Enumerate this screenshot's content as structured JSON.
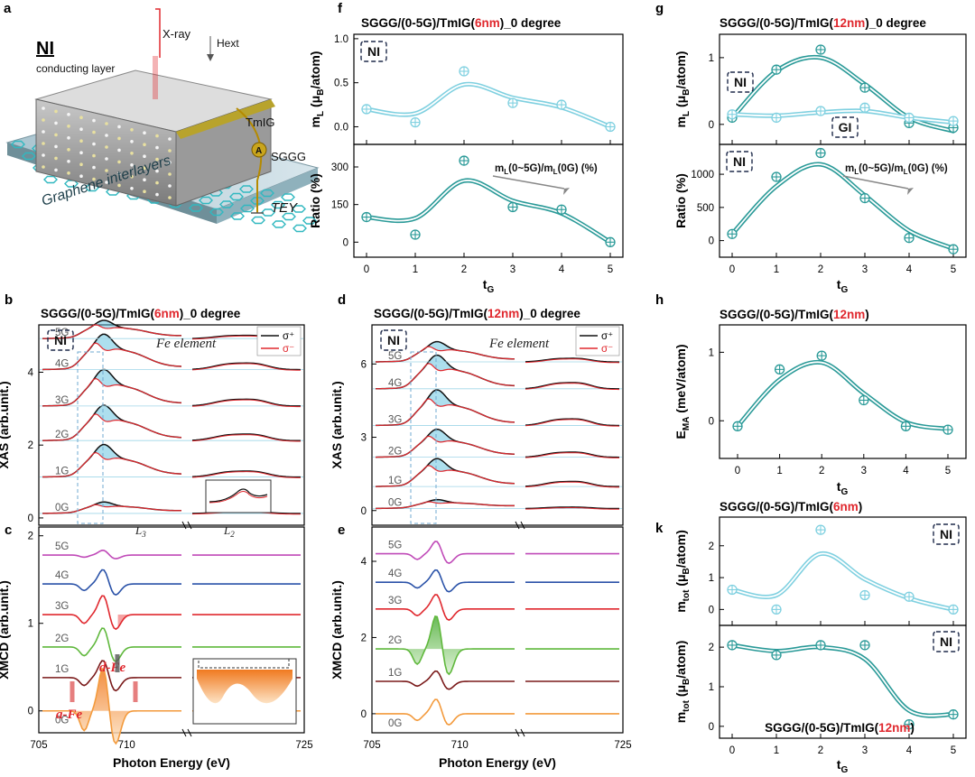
{
  "panel_letters": {
    "a": "a",
    "b": "b",
    "c": "c",
    "d": "d",
    "e": "e",
    "f": "f",
    "g": "g",
    "h": "h",
    "k": "k"
  },
  "schematic": {
    "title": "NI",
    "labels": {
      "conducting": "conducting layer",
      "xray": "X-ray",
      "hext": "Hext",
      "tmig": "TmIG",
      "sggg": "SGGG",
      "graphene": "Graphene interlayers",
      "tey": "TEY",
      "ammeter": "A"
    }
  },
  "colors": {
    "light": "#7fd0e0",
    "dark": "#2a9a98",
    "red": "#e0282e",
    "black": "#111111"
  },
  "chart_data": [
    {
      "id": "f",
      "type": "line",
      "title_parts": [
        "SGGG/(0-5G)/TmIG(",
        "6nm",
        ")_0 degree"
      ],
      "xlabel_main": "t",
      "xlabel_sub": "G",
      "x": [
        0,
        1,
        2,
        3,
        4,
        5
      ],
      "xticks": [
        "0",
        "1",
        "2",
        "3",
        "4",
        "5"
      ],
      "subplots": [
        {
          "ylabel_main": "m",
          "ylabel_sub": "L",
          "ylabel_rest": " (μ",
          "ylabel_sub2": "B",
          "ylabel_end": "/atom)",
          "ylim": [
            -0.2,
            1.05
          ],
          "yticks": [
            "0.0",
            "0.5",
            "1.0"
          ],
          "ytick_values": [
            0,
            0.5,
            1.0
          ],
          "badge": "NI",
          "series": [
            {
              "values": [
                0.2,
                0.05,
                0.63,
                0.27,
                0.25,
                0.0
              ],
              "fit": [
                0.2,
                0.15,
                0.48,
                0.33,
                0.22,
                0.0
              ],
              "color": "light"
            }
          ]
        },
        {
          "ylabel_main": "Ratio (%)",
          "ylim": [
            -60,
            390
          ],
          "yticks": [
            "0",
            "150",
            "300"
          ],
          "ytick_values": [
            0,
            150,
            300
          ],
          "annotation_parts": [
            "m",
            "L",
            "(0~5G)/m",
            "L",
            "(0G) (%)"
          ],
          "series": [
            {
              "values": [
                100,
                30,
                325,
                140,
                130,
                0
              ],
              "fit": [
                100,
                95,
                245,
                165,
                115,
                0
              ],
              "color": "dark"
            }
          ]
        }
      ]
    },
    {
      "id": "g",
      "type": "line",
      "title_parts": [
        "SGGG/(0-5G)/TmIG(",
        "12nm",
        ")_0 degree"
      ],
      "xlabel_main": "t",
      "xlabel_sub": "G",
      "x": [
        0,
        1,
        2,
        3,
        4,
        5
      ],
      "xticks": [
        "0",
        "1",
        "2",
        "3",
        "4",
        "5"
      ],
      "subplots": [
        {
          "ylabel_main": "m",
          "ylabel_sub": "L",
          "ylabel_rest": " (μ",
          "ylabel_sub2": "B",
          "ylabel_end": "/atom)",
          "ylim": [
            -0.3,
            1.35
          ],
          "yticks": [
            "0",
            "1"
          ],
          "ytick_values": [
            0,
            1
          ],
          "badges": [
            "NI",
            "GI"
          ],
          "series": [
            {
              "name": "NI",
              "values": [
                0.1,
                0.82,
                1.12,
                0.55,
                0.02,
                -0.05
              ],
              "fit": [
                0.1,
                0.8,
                1.0,
                0.6,
                0.1,
                -0.1
              ],
              "color": "dark"
            },
            {
              "name": "GI",
              "values": [
                0.15,
                0.1,
                0.2,
                0.25,
                0.1,
                0.05
              ],
              "fit": [
                0.15,
                0.13,
                0.18,
                0.2,
                0.1,
                0.03
              ],
              "color": "light"
            }
          ]
        },
        {
          "ylabel_main": "Ratio (%)",
          "ylim": [
            -250,
            1450
          ],
          "yticks": [
            "0",
            "500",
            "1000"
          ],
          "ytick_values": [
            0,
            500,
            1000
          ],
          "badge": "NI",
          "annotation_parts": [
            "m",
            "L",
            "(0~5G)/m",
            "L",
            "(0G) (%)"
          ],
          "series": [
            {
              "values": [
                100,
                960,
                1320,
                640,
                40,
                -130
              ],
              "fit": [
                100,
                820,
                1150,
                680,
                150,
                -120
              ],
              "color": "dark"
            }
          ]
        }
      ]
    },
    {
      "id": "h",
      "type": "line",
      "title_parts": [
        "SGGG/(0-5G)/TmIG(",
        "12nm",
        ")"
      ],
      "xlabel_main": "t",
      "xlabel_sub": "G",
      "ylabel_main": "E",
      "ylabel_sub": "MA",
      "ylabel_end": " (meV/atom)",
      "x": [
        0,
        1,
        2,
        3,
        4,
        5
      ],
      "xticks": [
        "0",
        "1",
        "2",
        "3",
        "4",
        "5"
      ],
      "ylim": [
        -0.55,
        1.4
      ],
      "yticks": [
        "0",
        "1"
      ],
      "ytick_values": [
        0,
        1
      ],
      "series": [
        {
          "values": [
            -0.08,
            0.75,
            0.95,
            0.3,
            -0.08,
            -0.13
          ],
          "fit": [
            -0.08,
            0.6,
            0.85,
            0.4,
            -0.02,
            -0.12
          ],
          "color": "dark"
        }
      ]
    },
    {
      "id": "k",
      "type": "line",
      "title_parts": [
        "SGGG/(0-5G)/TmIG(",
        "6nm",
        ")"
      ],
      "bottom_title_parts": [
        "SGGG/(0-5G)/TmIG(",
        "12nm",
        ")"
      ],
      "xlabel_main": "t",
      "xlabel_sub": "G",
      "x": [
        0,
        1,
        2,
        3,
        4,
        5
      ],
      "xticks": [
        "0",
        "1",
        "2",
        "3",
        "4",
        "5"
      ],
      "subplots": [
        {
          "ylabel_main": "m",
          "ylabel_sub": "tot",
          "ylabel_rest": " (μ",
          "ylabel_sub2": "B",
          "ylabel_end": "/atom)",
          "ylim": [
            -0.5,
            2.9
          ],
          "yticks": [
            "0",
            "1",
            "2"
          ],
          "ytick_values": [
            0,
            1,
            2
          ],
          "badge": "NI",
          "series": [
            {
              "values": [
                0.62,
                0.0,
                2.5,
                0.45,
                0.4,
                0.0
              ],
              "fit": [
                0.62,
                0.45,
                1.75,
                0.95,
                0.35,
                0.0
              ],
              "color": "light"
            }
          ]
        },
        {
          "ylabel_main": "m",
          "ylabel_sub": "tot",
          "ylabel_rest": " (μ",
          "ylabel_sub2": "B",
          "ylabel_end": "/atom)",
          "ylim": [
            -0.3,
            2.55
          ],
          "yticks": [
            "0",
            "1",
            "2"
          ],
          "ytick_values": [
            0,
            1,
            2
          ],
          "badge": "NI",
          "series": [
            {
              "values": [
                2.05,
                1.8,
                2.05,
                2.05,
                0.05,
                0.3
              ],
              "fit": [
                2.05,
                1.9,
                2.0,
                1.7,
                0.4,
                0.3
              ],
              "color": "dark"
            }
          ]
        }
      ]
    },
    {
      "id": "b",
      "type": "line",
      "title_parts": [
        "SGGG/(0-5G)/TmIG(",
        "6nm",
        ")_0 degree"
      ],
      "ylabel": "XAS (arb.unit.)",
      "yticks": [
        "0",
        "2",
        "4"
      ],
      "ytick_values": [
        0,
        2,
        4
      ],
      "ylim": [
        -0.2,
        5.3
      ],
      "badge": "NI",
      "element_label": "Fe element",
      "legend": [
        "σ⁺",
        "σ⁻"
      ],
      "edge_labels": {
        "l3_main": "L",
        "l3_sub": "3",
        "l2_main": "L",
        "l2_sub": "2"
      },
      "offsets_labels": [
        "0G",
        "1G",
        "2G",
        "3G",
        "4G",
        "5G"
      ],
      "offsets": [
        0,
        1.0,
        2.0,
        2.95,
        3.95,
        4.8
      ],
      "peak_heights": [
        0.18,
        0.55,
        0.6,
        0.62,
        0.6,
        0.3
      ]
    },
    {
      "id": "c",
      "type": "line",
      "ylabel": "XMCD (arb.unit.)",
      "xlabel": "Photon Energy (eV)",
      "xticks": [
        "705",
        "710",
        "725"
      ],
      "yticks": [
        "0",
        "1",
        "2"
      ],
      "ytick_values": [
        0,
        1,
        2
      ],
      "ylim": [
        -0.25,
        2.1
      ],
      "offsets_labels": [
        "0G",
        "1G",
        "2G",
        "3G",
        "4G",
        "5G"
      ],
      "offsets": [
        0,
        0.38,
        0.73,
        1.1,
        1.45,
        1.78
      ],
      "amplitudes": [
        0.45,
        0.18,
        0.2,
        0.2,
        0.15,
        0.05
      ],
      "curve_colors": [
        "#f39a3c",
        "#7a1a1a",
        "#5fb83c",
        "#e0282e",
        "#2a52a8",
        "#c04ab8"
      ],
      "annotations": {
        "dfe": "d-Fe",
        "afe": "a-Fe"
      }
    },
    {
      "id": "d",
      "type": "line",
      "title_parts": [
        "SGGG/(0-5G)/TmIG(",
        "12nm",
        ")_0 degree"
      ],
      "ylabel": "XAS (arb.unit.)",
      "yticks": [
        "0",
        "3",
        "6"
      ],
      "ytick_values": [
        0,
        3,
        6
      ],
      "ylim": [
        -0.6,
        7.6
      ],
      "badge": "NI",
      "element_label": "Fe element",
      "legend": [
        "σ⁺",
        "σ⁻"
      ],
      "offsets_labels": [
        "0G",
        "1G",
        "2G",
        "3G",
        "4G",
        "5G"
      ],
      "offsets": [
        -0.1,
        0.8,
        2.0,
        3.3,
        4.8,
        5.9
      ],
      "peak_heights": [
        0.2,
        0.7,
        0.7,
        0.9,
        0.85,
        0.5
      ]
    },
    {
      "id": "e",
      "type": "line",
      "ylabel": "XMCD (arb.unit.)",
      "xlabel": "Photon Energy (eV)",
      "xticks": [
        "705",
        "710",
        "725"
      ],
      "yticks": [
        "0",
        "2",
        "4"
      ],
      "ytick_values": [
        0,
        2,
        4
      ],
      "ylim": [
        -0.5,
        4.9
      ],
      "offsets_labels": [
        "0G",
        "1G",
        "2G",
        "3G",
        "4G",
        "5G"
      ],
      "offsets": [
        0,
        0.85,
        1.7,
        2.75,
        3.45,
        4.2
      ],
      "amplitudes": [
        0.35,
        0.25,
        0.8,
        0.35,
        0.3,
        0.3
      ],
      "curve_colors": [
        "#f39a3c",
        "#7a1a1a",
        "#5fb83c",
        "#e0282e",
        "#2a52a8",
        "#c04ab8"
      ]
    }
  ]
}
